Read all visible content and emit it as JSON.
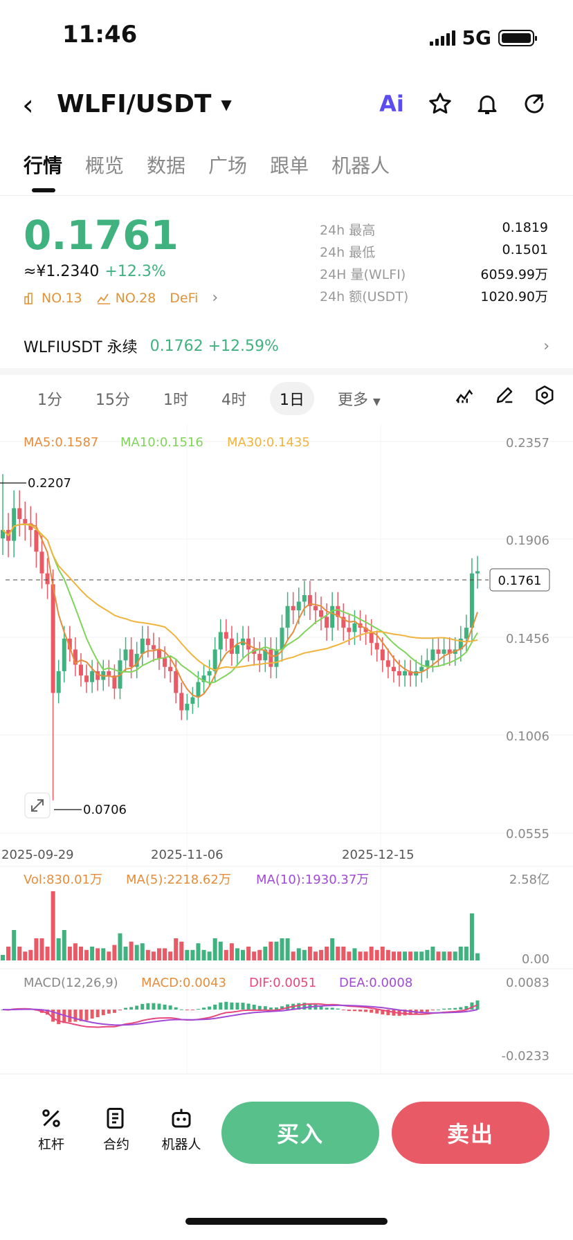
{
  "status": {
    "time": "11:46",
    "network": "5G"
  },
  "header": {
    "title": "WLFI/USDT",
    "ai_label": "Ai"
  },
  "tabs": [
    "行情",
    "概览",
    "数据",
    "广场",
    "跟单",
    "机器人"
  ],
  "price": {
    "last": "0.1761",
    "cny": "≈¥1.2340",
    "change": "+12.3%",
    "rank1": "NO.13",
    "rank2": "NO.28",
    "sector": "DeFi"
  },
  "stats": [
    {
      "label": "24h  最高",
      "value": "0.1819"
    },
    {
      "label": "24h  最低",
      "value": "0.1501"
    },
    {
      "label": "24H  量(WLFI)",
      "value": "6059.99万"
    },
    {
      "label": "24h  额(USDT)",
      "value": "1020.90万"
    }
  ],
  "perp": {
    "name": "WLFIUSDT 永续",
    "price": "0.1762",
    "change": "+12.59%"
  },
  "intervals": [
    "1分",
    "15分",
    "1时",
    "4时",
    "1日",
    "更多"
  ],
  "active_interval": "1日",
  "colors": {
    "up": "#3fb27f",
    "down": "#e85a66",
    "ma5": "#e58d3c",
    "ma10": "#7fd45a",
    "ma30": "#f0b43c",
    "dif": "#e8477a",
    "dea": "#a14ad6"
  },
  "chart_data": {
    "type": "candlestick",
    "ma_legend": {
      "ma5": "MA5:0.1587",
      "ma10": "MA10:0.1516",
      "ma30": "MA30:0.1435"
    },
    "y_ticks": [
      "0.2357",
      "0.1906",
      "0.1456",
      "0.1006",
      "0.0555"
    ],
    "ylim": [
      0.0555,
      0.2357
    ],
    "x_ticks": [
      "2025-09-29",
      "2025-11-06",
      "2025-12-15"
    ],
    "high_label": "0.2207",
    "low_label": "0.0706",
    "current_label": "0.1761",
    "closes": [
      0.195,
      0.19,
      0.205,
      0.2,
      0.198,
      0.195,
      0.185,
      0.175,
      0.17,
      0.12,
      0.13,
      0.145,
      0.14,
      0.133,
      0.128,
      0.125,
      0.13,
      0.126,
      0.13,
      0.128,
      0.122,
      0.135,
      0.14,
      0.132,
      0.138,
      0.145,
      0.142,
      0.14,
      0.136,
      0.132,
      0.13,
      0.12,
      0.112,
      0.115,
      0.118,
      0.125,
      0.128,
      0.13,
      0.14,
      0.148,
      0.145,
      0.138,
      0.142,
      0.145,
      0.14,
      0.138,
      0.135,
      0.14,
      0.132,
      0.14,
      0.15,
      0.16,
      0.158,
      0.162,
      0.165,
      0.16,
      0.158,
      0.155,
      0.15,
      0.16,
      0.155,
      0.15,
      0.148,
      0.152,
      0.15,
      0.148,
      0.143,
      0.14,
      0.135,
      0.132,
      0.13,
      0.128,
      0.13,
      0.128,
      0.13,
      0.132,
      0.135,
      0.14,
      0.138,
      0.14,
      0.138,
      0.14,
      0.145,
      0.15,
      0.175,
      0.176
    ],
    "volume_legend": {
      "vol": "Vol:830.01万",
      "ma5": "MA(5):2218.62万",
      "ma10": "MA(10):1930.37万"
    },
    "volume_ticks": [
      "2.58亿",
      "0.00"
    ],
    "macd_legend": {
      "title": "MACD(12,26,9)",
      "macd": "MACD:0.0043",
      "dif": "DIF:0.0051",
      "dea": "DEA:0.0008"
    },
    "macd_ticks": [
      "0.0083",
      "-0.0233"
    ]
  },
  "bottom": {
    "leverage": "杠杆",
    "contract": "合约",
    "bot": "机器人",
    "buy": "买入",
    "sell": "卖出"
  }
}
